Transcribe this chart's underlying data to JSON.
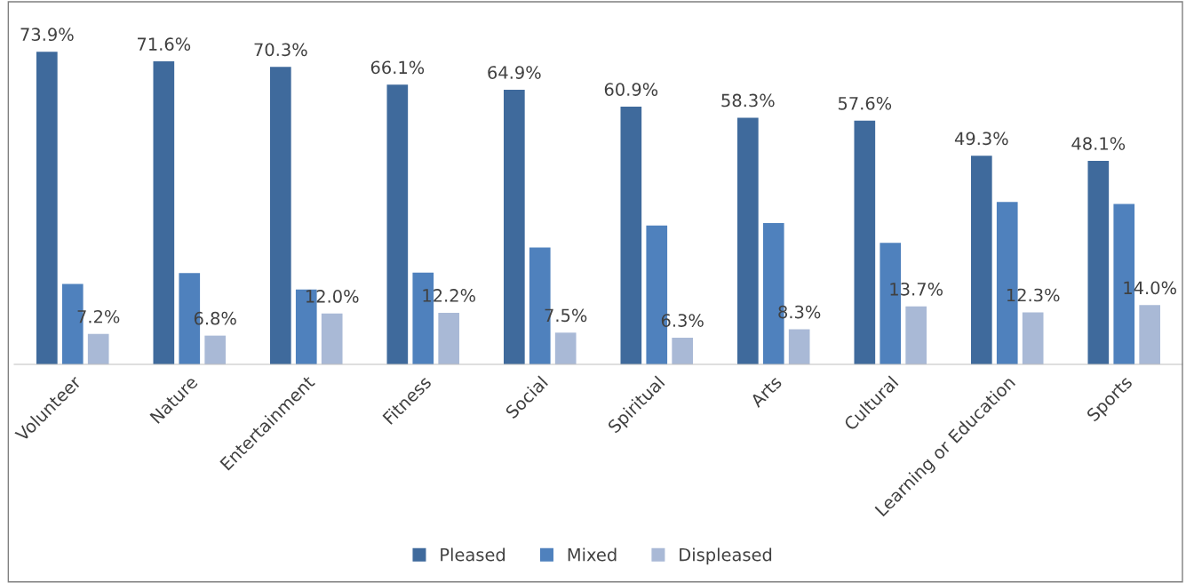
{
  "chart_data": {
    "type": "bar",
    "categories": [
      "Volunteer",
      "Nature",
      "Entertainment",
      "Fitness",
      "Social",
      "Spiritual",
      "Arts",
      "Cultural",
      "Learning or Education",
      "Sports"
    ],
    "series": [
      {
        "name": "Pleased",
        "color": "#3f6a9c",
        "values": [
          73.9,
          71.6,
          70.3,
          66.1,
          64.9,
          60.9,
          58.3,
          57.6,
          49.3,
          48.1
        ],
        "value_labels": [
          "73.9%",
          "71.6%",
          "70.3%",
          "66.1%",
          "64.9%",
          "60.9%",
          "58.3%",
          "57.6%",
          "49.3%",
          "48.1%"
        ]
      },
      {
        "name": "Mixed",
        "color": "#4f81bd",
        "values": [
          19.0,
          21.6,
          17.7,
          21.7,
          27.6,
          32.8,
          33.4,
          28.7,
          38.4,
          37.9
        ]
      },
      {
        "name": "Displeased",
        "color": "#a9b9d6",
        "values": [
          7.2,
          6.8,
          12.0,
          12.2,
          7.5,
          6.3,
          8.3,
          13.7,
          12.3,
          14.0
        ],
        "value_labels": [
          "7.2%",
          "6.8%",
          "12.0%",
          "12.2%",
          "7.5%",
          "6.3%",
          "8.3%",
          "13.7%",
          "12.3%",
          "14.0%"
        ]
      }
    ],
    "legend": "bottom",
    "grid": false
  }
}
